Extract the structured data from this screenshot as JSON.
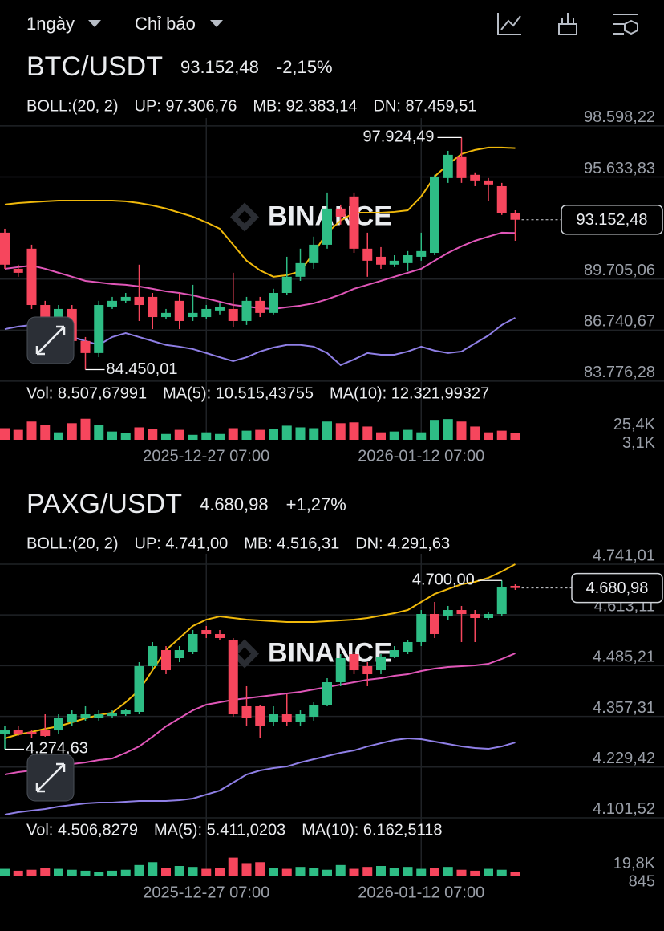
{
  "toolbar": {
    "interval": "1ngày",
    "indicators": "Chỉ báo"
  },
  "chart_data": [
    {
      "type": "candlestick",
      "title": "BTC/USDT",
      "price": "93.152,48",
      "change": "-2,15%",
      "price_color": "#f6465d",
      "boll_label": "BOLL:(20, 2)",
      "up_label": "UP: 97.306,76",
      "mb_label": "MB: 92.383,14",
      "dn_label": "DN: 87.459,51",
      "vol_label": "Vol: 8.507,67991",
      "ma5_label": "MA(5): 10.515,43755",
      "ma10_label": "MA(10): 12.321,99327",
      "watermark": "BINANCE",
      "up_color": "#2ebd85",
      "down_color": "#f6465d",
      "categories": [
        null,
        null,
        null,
        null,
        null,
        null,
        null,
        null,
        null,
        null,
        null,
        null,
        null,
        null,
        null,
        "2025-12-27 07:00",
        null,
        null,
        null,
        null,
        null,
        null,
        null,
        null,
        null,
        null,
        null,
        null,
        null,
        null,
        null,
        "2026-01-12 07:00",
        null,
        null,
        null,
        null,
        null,
        null,
        null
      ],
      "ohlc": [
        [
          92400,
          92630,
          90300,
          90540
        ],
        [
          90300,
          90540,
          89840,
          90070
        ],
        [
          91470,
          91700,
          87970,
          88200
        ],
        [
          88200,
          88440,
          87270,
          87500
        ],
        [
          87500,
          88200,
          87270,
          87970
        ],
        [
          87970,
          88200,
          85880,
          86110
        ],
        [
          86110,
          86340,
          84450.01,
          85410
        ],
        [
          85410,
          88440,
          85170,
          88200
        ],
        [
          88110,
          88670,
          87970,
          88440
        ],
        [
          88440,
          88900,
          88300,
          88670
        ],
        [
          88670,
          90540,
          87270,
          88200
        ],
        [
          88670,
          88900,
          86800,
          87500
        ],
        [
          87500,
          87970,
          87360,
          87740
        ],
        [
          88440,
          88900,
          86800,
          87270
        ],
        [
          87500,
          89370,
          87270,
          87740
        ],
        [
          87500,
          88200,
          87360,
          87970
        ],
        [
          87880,
          88300,
          87650,
          88070
        ],
        [
          87970,
          90070,
          86900,
          87270
        ],
        [
          87270,
          88670,
          87040,
          88440
        ],
        [
          88440,
          88670,
          87500,
          87740
        ],
        [
          87740,
          89140,
          87650,
          88900
        ],
        [
          88900,
          91000,
          88760,
          89840
        ],
        [
          89840,
          91470,
          89600,
          90630
        ],
        [
          90630,
          92170,
          90300,
          91700
        ],
        [
          91700,
          94730,
          91470,
          93800
        ],
        [
          93800,
          94030,
          92870,
          93330
        ],
        [
          94500,
          94730,
          91230,
          91470
        ],
        [
          91470,
          92400,
          89840,
          90770
        ],
        [
          91000,
          91560,
          90300,
          90540
        ],
        [
          90540,
          91090,
          90400,
          90770
        ],
        [
          90630,
          91330,
          90160,
          91090
        ],
        [
          91000,
          92400,
          90770,
          91330
        ],
        [
          91230,
          95760,
          91090,
          95660
        ],
        [
          95570,
          97150,
          95290,
          96920
        ],
        [
          96830,
          97924.49,
          95290,
          95570
        ],
        [
          95760,
          95900,
          95100,
          95430
        ],
        [
          95430,
          95570,
          94260,
          95200
        ],
        [
          95100,
          95290,
          93430,
          93560
        ],
        [
          93560,
          93700,
          91930,
          93152.48
        ]
      ],
      "upper": {
        "color": "#f0b90b",
        "values": [
          94030,
          94120,
          94170,
          94220,
          94260,
          94260,
          94260,
          94260,
          94260,
          94220,
          94120,
          93980,
          93800,
          93560,
          93330,
          93000,
          92630,
          91700,
          90770,
          90210,
          89840,
          89930,
          90160,
          91230,
          92400,
          93100,
          93560,
          93560,
          93560,
          93610,
          93700,
          94500,
          95660,
          96360,
          96970,
          97200,
          97340,
          97340,
          97306.76
        ]
      },
      "middle": {
        "color": "#e056b8",
        "values": [
          90300,
          90400,
          90490,
          90300,
          90070,
          89840,
          89600,
          89510,
          89420,
          89370,
          89280,
          89140,
          88990,
          88900,
          88760,
          88580,
          88390,
          88200,
          88110,
          88020,
          87970,
          88070,
          88160,
          88300,
          88530,
          88810,
          89140,
          89370,
          89600,
          89840,
          90070,
          90300,
          90770,
          91230,
          91610,
          91930,
          92170,
          92400,
          92383.14
        ]
      },
      "lower": {
        "color": "#8f7fe6",
        "values": [
          86800,
          86950,
          87040,
          86800,
          86570,
          86340,
          86110,
          85880,
          86340,
          86570,
          86340,
          86110,
          85880,
          85780,
          85640,
          85410,
          85170,
          84940,
          85170,
          85500,
          85730,
          85880,
          85880,
          85780,
          85410,
          84710,
          85040,
          85410,
          85310,
          85310,
          85500,
          85780,
          85550,
          85410,
          85500,
          85970,
          86430,
          87040,
          87459.51
        ]
      },
      "ylim": [
        83540,
        99060
      ],
      "yticks": [
        {
          "value": 98598.22,
          "label": "98.598,22"
        },
        {
          "value": 95633.83,
          "label": "95.633,83"
        },
        {
          "value": 89705.06,
          "label": "89.705,06"
        },
        {
          "value": 86740.67,
          "label": "86.740,67"
        },
        {
          "value": 83776.28,
          "label": "83.776,28"
        }
      ],
      "last_price": {
        "value": 93152.48,
        "label": "93.152,48"
      },
      "high": {
        "value": 97924.49,
        "label": "97.924,49"
      },
      "low": {
        "value": 84450.01,
        "label": "84.450,01"
      },
      "volume": {
        "values": [
          14000,
          12000,
          22000,
          18000,
          9000,
          20000,
          25400,
          18000,
          10000,
          8000,
          15000,
          13000,
          7000,
          12000,
          6000,
          9000,
          7000,
          14000,
          11000,
          12000,
          13000,
          17000,
          15000,
          14000,
          22000,
          20000,
          21000,
          16000,
          9000,
          10000,
          12000,
          9000,
          24000,
          25000,
          22000,
          16000,
          9000,
          11000,
          8507.67991
        ],
        "ylim": [
          0,
          29000
        ],
        "yticks": [
          {
            "value": 25400,
            "label": "25,4K"
          },
          {
            "value": 3100,
            "label": "3,1K"
          }
        ]
      }
    },
    {
      "type": "candlestick",
      "title": "PAXG/USDT",
      "price": "4.680,98",
      "change": "+1,27%",
      "price_color": "#2ebd85",
      "boll_label": "BOLL:(20, 2)",
      "up_label": "UP: 4.741,00",
      "mb_label": "MB: 4.516,31",
      "dn_label": "DN: 4.291,63",
      "vol_label": "Vol: 4.506,8279",
      "ma5_label": "MA(5): 5.411,0203",
      "ma10_label": "MA(10): 6.162,5118",
      "watermark": "BINANCE",
      "up_color": "#2ebd85",
      "down_color": "#f6465d",
      "categories": [
        null,
        null,
        null,
        null,
        null,
        null,
        null,
        null,
        null,
        null,
        null,
        null,
        null,
        null,
        null,
        "2025-12-27 07:00",
        null,
        null,
        null,
        null,
        null,
        null,
        null,
        null,
        null,
        null,
        null,
        null,
        null,
        null,
        null,
        "2026-01-12 07:00",
        null,
        null,
        null,
        null,
        null,
        null,
        null
      ],
      "ohlc": [
        [
          4311.9,
          4332.2,
          4274.63,
          4322.0
        ],
        [
          4322.0,
          4332.2,
          4307.9,
          4311.9
        ],
        [
          4318.0,
          4322.0,
          4301.8,
          4311.9
        ],
        [
          4322.0,
          4362.5,
          4305.9,
          4307.9
        ],
        [
          4322.0,
          4362.5,
          4311.9,
          4352.4
        ],
        [
          4342.3,
          4372.6,
          4332.2,
          4362.5
        ],
        [
          4352.4,
          4382.8,
          4346.4,
          4362.5
        ],
        [
          4352.4,
          4372.6,
          4346.4,
          4362.5
        ],
        [
          4358.5,
          4372.6,
          4352.4,
          4366.6
        ],
        [
          4362.5,
          4376.7,
          4358.5,
          4372.6
        ],
        [
          4368.6,
          4494.1,
          4362.5,
          4484.0
        ],
        [
          4484.0,
          4544.7,
          4477.9,
          4534.5
        ],
        [
          4524.4,
          4534.5,
          4463.7,
          4473.8
        ],
        [
          4504.2,
          4534.5,
          4494.1,
          4524.4
        ],
        [
          4520.4,
          4575.0,
          4514.3,
          4564.9
        ],
        [
          4575.0,
          4585.2,
          4554.8,
          4564.9
        ],
        [
          4564.9,
          4575.0,
          4548.7,
          4554.8
        ],
        [
          4550.7,
          4554.8,
          4356.5,
          4362.5
        ],
        [
          4382.8,
          4433.4,
          4332.2,
          4352.4
        ],
        [
          4382.8,
          4386.8,
          4301.8,
          4332.2
        ],
        [
          4342.3,
          4382.8,
          4332.2,
          4362.5
        ],
        [
          4362.5,
          4413.1,
          4332.2,
          4342.3
        ],
        [
          4342.3,
          4372.6,
          4332.2,
          4362.5
        ],
        [
          4356.5,
          4392.9,
          4346.4,
          4386.8
        ],
        [
          4386.8,
          4453.6,
          4382.8,
          4443.5
        ],
        [
          4443.5,
          4514.3,
          4433.4,
          4504.2
        ],
        [
          4514.3,
          4520.4,
          4463.7,
          4473.8
        ],
        [
          4484.0,
          4494.1,
          4433.4,
          4463.7
        ],
        [
          4473.8,
          4514.3,
          4463.7,
          4508.3
        ],
        [
          4508.3,
          4534.5,
          4504.2,
          4524.4
        ],
        [
          4520.4,
          4550.7,
          4514.3,
          4544.7
        ],
        [
          4544.7,
          4625.6,
          4534.5,
          4615.5
        ],
        [
          4615.5,
          4645.9,
          4554.8,
          4564.9
        ],
        [
          4609.4,
          4635.8,
          4601.3,
          4625.6
        ],
        [
          4625.6,
          4635.8,
          4544.7,
          4615.5
        ],
        [
          4615.5,
          4625.6,
          4544.7,
          4605.4
        ],
        [
          4605.4,
          4621.6,
          4601.3,
          4615.5
        ],
        [
          4615.5,
          4700.0,
          4609.4,
          4682.3
        ],
        [
          4686.4,
          4690.4,
          4676.2,
          4680.98
        ]
      ],
      "upper": {
        "color": "#f0b90b",
        "values": [
          4301.8,
          4311.9,
          4318.0,
          4326.1,
          4332.2,
          4342.3,
          4352.4,
          4360.5,
          4366.6,
          4392.9,
          4423.2,
          4473.8,
          4524.4,
          4554.8,
          4585.2,
          4601.3,
          4609.4,
          4605.4,
          4601.3,
          4599.3,
          4597.3,
          4595.3,
          4595.3,
          4595.3,
          4597.3,
          4599.3,
          4601.3,
          4605.4,
          4611.5,
          4617.5,
          4625.6,
          4645.9,
          4666.1,
          4678.3,
          4690.4,
          4696.5,
          4706.6,
          4722.8,
          4741.0
        ]
      },
      "middle": {
        "color": "#e056b8",
        "values": [
          4210.7,
          4216.8,
          4220.8,
          4226.9,
          4230.9,
          4237.0,
          4241.1,
          4247.1,
          4251.2,
          4265.4,
          4281.5,
          4305.9,
          4332.2,
          4352.4,
          4372.6,
          4386.8,
          4392.9,
          4398.9,
          4403.0,
          4407.0,
          4411.1,
          4415.1,
          4419.2,
          4425.3,
          4431.3,
          4437.4,
          4443.5,
          4449.5,
          4453.6,
          4459.7,
          4463.7,
          4471.8,
          4477.9,
          4481.9,
          4484.0,
          4486.0,
          4490.0,
          4502.2,
          4516.31
        ]
      },
      "lower": {
        "color": "#8f7fe6",
        "values": [
          4109.5,
          4115.6,
          4119.6,
          4123.7,
          4129.8,
          4133.8,
          4137.9,
          4139.9,
          4139.9,
          4141.9,
          4144.0,
          4144.0,
          4144.0,
          4146.0,
          4150.0,
          4160.1,
          4170.2,
          4190.5,
          4210.7,
          4220.8,
          4226.9,
          4230.9,
          4241.1,
          4249.2,
          4257.3,
          4265.4,
          4271.4,
          4281.5,
          4289.6,
          4297.7,
          4301.8,
          4299.8,
          4293.7,
          4287.6,
          4281.5,
          4277.5,
          4275.4,
          4281.5,
          4291.63
        ]
      },
      "ylim": [
        4089.3,
        4767.3
      ],
      "yticks": [
        {
          "value": 4741.01,
          "label": "4.741,01"
        },
        {
          "value": 4613.11,
          "label": "4.613,11"
        },
        {
          "value": 4485.21,
          "label": "4.485,21"
        },
        {
          "value": 4357.31,
          "label": "4.357,31"
        },
        {
          "value": 4229.42,
          "label": "4.229,42"
        },
        {
          "value": 4101.52,
          "label": "4.101,52"
        }
      ],
      "last_price": {
        "value": 4680.98,
        "label": "4.680,98"
      },
      "high": {
        "value": 4700.0,
        "label": "4.700,00"
      },
      "low": {
        "value": 4274.63,
        "label": "4.274,63"
      },
      "volume": {
        "values": [
          8000,
          6000,
          7000,
          9000,
          8000,
          7000,
          6000,
          5000,
          6000,
          7000,
          12000,
          15000,
          9000,
          11000,
          10000,
          8000,
          9000,
          19800,
          14000,
          15000,
          9000,
          8000,
          10000,
          9000,
          7000,
          12000,
          8000,
          10000,
          11000,
          9000,
          10000,
          8000,
          9000,
          10000,
          7000,
          6000,
          8000,
          7000,
          4506.8279
        ],
        "ylim": [
          0,
          22000
        ],
        "yticks": [
          {
            "value": 19800,
            "label": "19,8K"
          },
          {
            "value": 845,
            "label": "845"
          }
        ]
      }
    }
  ]
}
